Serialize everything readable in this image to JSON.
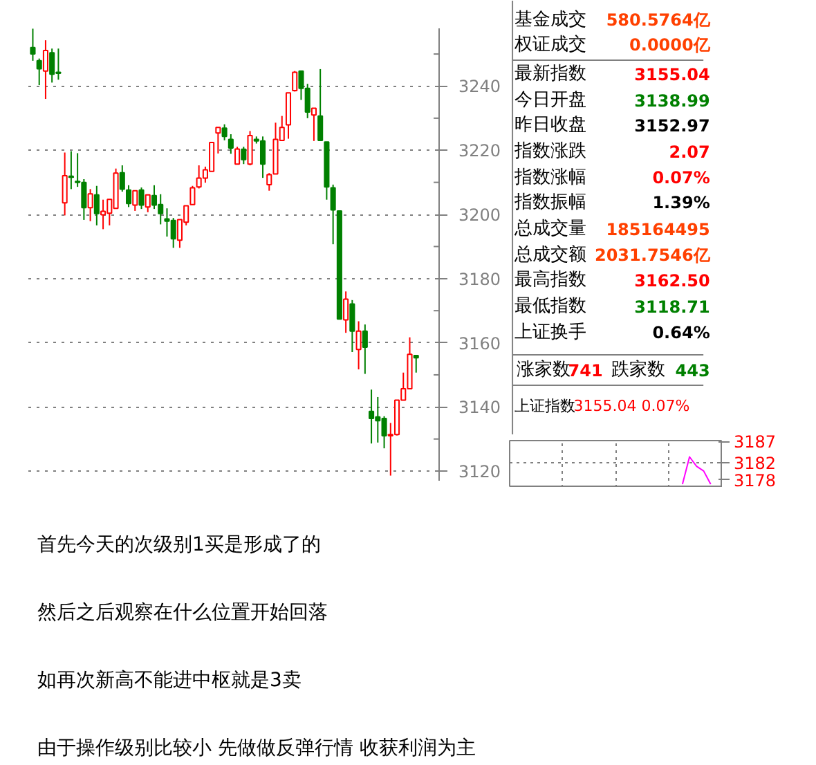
{
  "chart_data": [
    {
      "type": "candlestick",
      "categories": [
        null,
        null,
        null,
        null,
        null,
        null,
        null,
        null,
        null,
        null,
        null,
        null,
        null,
        null,
        null,
        null,
        null,
        null,
        null,
        null,
        null,
        null,
        null,
        null,
        null,
        null,
        null,
        null,
        null,
        null,
        null,
        null,
        null,
        null,
        null,
        null,
        null,
        null,
        null,
        null,
        null,
        null,
        null,
        null,
        null,
        null,
        null,
        null,
        null,
        null,
        null,
        null,
        null,
        null,
        null,
        null,
        null,
        null,
        null,
        null,
        null
      ],
      "ohlc": [
        [
          3252,
          3257.9,
          3247.9,
          3250
        ],
        [
          3247.9,
          3248.6,
          3240.3,
          3245.4
        ],
        [
          3244.7,
          3254.3,
          3236,
          3251.1
        ],
        [
          3250.4,
          3251.7,
          3241.1,
          3243.7
        ],
        [
          3244.3,
          3251.7,
          3242,
          3244
        ],
        [
          3203.6,
          3219.3,
          3199.7,
          3212.1
        ],
        [
          3211.9,
          3219.7,
          3207.9,
          3211.6
        ],
        [
          3210.3,
          3219.1,
          3208.6,
          3210
        ],
        [
          3210,
          3211,
          3198.3,
          3202.1
        ],
        [
          3202.1,
          3207.9,
          3197.9,
          3206.4
        ],
        [
          3206.1,
          3208.9,
          3196.6,
          3200.3
        ],
        [
          3199.9,
          3204.6,
          3195.4,
          3201
        ],
        [
          3200.4,
          3204.7,
          3196.6,
          3204.7
        ],
        [
          3201.9,
          3214.3,
          3201.9,
          3212.9
        ],
        [
          3213,
          3215.3,
          3207.1,
          3207.9
        ],
        [
          3207.6,
          3209.1,
          3202.3,
          3203.4
        ],
        [
          3202.9,
          3207.4,
          3201.1,
          3207.4
        ],
        [
          3207.6,
          3208.4,
          3201.7,
          3202.9
        ],
        [
          3202.3,
          3206.1,
          3200.7,
          3206.1
        ],
        [
          3205.9,
          3209.1,
          3201.7,
          3202.9
        ],
        [
          3203.1,
          3206.3,
          3196.9,
          3200.3
        ],
        [
          3198.6,
          3201.9,
          3193.1,
          3197.9
        ],
        [
          3198.1,
          3198.9,
          3189.6,
          3192.4
        ],
        [
          3192,
          3198.4,
          3189.6,
          3198.4
        ],
        [
          3197.6,
          3202.7,
          3196.6,
          3202.7
        ],
        [
          3203.1,
          3208.9,
          3203.1,
          3208.3
        ],
        [
          3208.6,
          3215.3,
          3208.1,
          3211.3
        ],
        [
          3211.3,
          3214.9,
          3209.9,
          3213.9
        ],
        [
          3213.4,
          3222.4,
          3213.4,
          3222.4
        ],
        [
          3225.4,
          3227.1,
          3219,
          3227.1
        ],
        [
          3226.9,
          3228.1,
          3223.1,
          3224.3
        ],
        [
          3223.4,
          3225,
          3218.9,
          3220.7
        ],
        [
          3215.7,
          3221.1,
          3215.7,
          3220.4
        ],
        [
          3220.3,
          3221.1,
          3215.7,
          3217.1
        ],
        [
          3215.7,
          3226,
          3215.3,
          3224.6
        ],
        [
          3223.4,
          3224.3,
          3222.1,
          3222.9
        ],
        [
          3222.9,
          3224.3,
          3211.4,
          3215.7
        ],
        [
          3209.3,
          3212.9,
          3207.4,
          3212.4
        ],
        [
          3212.6,
          3228.6,
          3212.6,
          3223.4
        ],
        [
          3223.1,
          3230.7,
          3222.9,
          3227.1
        ],
        [
          3227.9,
          3237.9,
          3223.6,
          3237.9
        ],
        [
          3238.6,
          3244.7,
          3238.3,
          3244.3
        ],
        [
          3244.7,
          3244.7,
          3235.7,
          3239.3
        ],
        [
          3239.3,
          3240.7,
          3230,
          3231.9
        ],
        [
          3231,
          3233.1,
          3222.9,
          3233.1
        ],
        [
          3230.7,
          3245.3,
          3223.1,
          3223.1
        ],
        [
          3222.6,
          3222.6,
          3204.6,
          3208.6
        ],
        [
          3208.3,
          3209.3,
          3190.7,
          3201.4
        ],
        [
          3201.1,
          3201.1,
          3167.4,
          3167.4
        ],
        [
          3167.1,
          3176,
          3163.1,
          3173.6
        ],
        [
          3172.1,
          3173.3,
          3157.1,
          3163.6
        ],
        [
          3157.9,
          3166.7,
          3151.7,
          3163.6
        ],
        [
          3163.6,
          3165.7,
          3150.3,
          3158.6
        ],
        [
          3138.6,
          3145.4,
          3128.6,
          3136.4
        ],
        [
          3136.9,
          3143.1,
          3128.9,
          3135.7
        ],
        [
          3136.4,
          3137.1,
          3127.1,
          3131
        ],
        [
          3131,
          3135,
          3118.6,
          3131.4
        ],
        [
          3131.4,
          3142.1,
          3131.1,
          3142.1
        ],
        [
          3142.1,
          3150.7,
          3142.1,
          3145.7
        ],
        [
          3145.7,
          3161.7,
          3145.7,
          3156.4
        ],
        [
          3156,
          3156,
          3150.7,
          3155.3
        ]
      ],
      "colors": [
        "#008000",
        "#008000",
        "#ff0000",
        "#008000",
        "#008000",
        "#ff0000",
        "#008000",
        "#008000",
        "#008000",
        "#ff0000",
        "#008000",
        "#ff0000",
        "#ff0000",
        "#ff0000",
        "#008000",
        "#008000",
        "#ff0000",
        "#008000",
        "#ff0000",
        "#008000",
        "#008000",
        "#008000",
        "#008000",
        "#ff0000",
        "#ff0000",
        "#ff0000",
        "#ff0000",
        "#ff0000",
        "#ff0000",
        "#ff0000",
        "#008000",
        "#008000",
        "#ff0000",
        "#008000",
        "#ff0000",
        "#008000",
        "#008000",
        "#ff0000",
        "#ff0000",
        "#ff0000",
        "#ff0000",
        "#ff0000",
        "#008000",
        "#008000",
        "#ff0000",
        "#008000",
        "#008000",
        "#008000",
        "#008000",
        "#ff0000",
        "#008000",
        "#ff0000",
        "#008000",
        "#008000",
        "#008000",
        "#008000",
        "#ff0000",
        "#ff0000",
        "#ff0000",
        "#ff0000",
        "#008000"
      ],
      "ylim": [
        3117,
        3258
      ],
      "yticks": [
        3120,
        {
          "value": 3130,
          "label": null
        },
        3140,
        {
          "value": 3150,
          "label": null
        },
        3160,
        {
          "value": 3170,
          "label": null
        },
        3180,
        {
          "value": 3190,
          "label": null
        },
        3200,
        {
          "value": 3210,
          "label": null
        },
        3220,
        {
          "value": 3230,
          "label": null
        },
        3240,
        {
          "value": 3250,
          "label": null
        }
      ],
      "grid": "y",
      "tick_labels": "y",
      "annotations": [
        "首先今天的次级别1买是形成了的",
        "然后之后观察在什么位置开始回落",
        "如再次新高不能进中枢就是3卖",
        "由于操作级别比较小 先做做反弹行情 收获利润为主"
      ]
    },
    {
      "type": "other",
      "categories": [
        "基金成交",
        "权证成交",
        "最新指数",
        "今日开盘",
        "昨日收盘",
        "指数涨跌",
        "指数涨幅",
        "指数振幅",
        "总成交量",
        "总成交额",
        "最高指数",
        "最低指数",
        "上证换手",
        "涨家数",
        "跌家数"
      ],
      "value_labels": [
        "580.5764亿",
        "0.0000亿",
        "3155.04",
        "3138.99",
        "3152.97",
        "2.07",
        "0.07%",
        "1.39%",
        "185164495",
        "2031.7546亿",
        "3162.50",
        "3118.71",
        "0.64%",
        "741",
        "443"
      ],
      "colors": [
        "#ff4000",
        "#ff4000",
        "#ff0000",
        "#008000",
        "#000000",
        "#ff0000",
        "#ff0000",
        "#000000",
        "#ff4000",
        "#ff4000",
        "#ff0000",
        "#008000",
        "#000000",
        "#ff0000",
        "#008000"
      ]
    },
    {
      "type": "line",
      "title": "上证指数",
      "subtitle": "3155.04 0.07%",
      "categories": [
        null,
        null,
        null,
        null,
        null,
        null,
        null,
        null,
        null,
        null,
        null,
        null,
        null,
        null,
        null,
        null,
        null,
        null,
        null,
        null,
        null,
        null,
        null,
        null,
        null,
        null,
        null,
        null,
        null,
        null,
        null,
        null,
        null,
        null,
        null,
        null,
        null,
        null,
        null,
        null,
        null,
        null,
        null,
        null,
        null,
        null,
        null,
        null,
        null,
        null,
        null,
        null,
        null,
        null,
        null,
        null,
        null,
        null,
        null,
        null,
        null
      ],
      "series": [
        {
          "color": "#ff00ff",
          "values": [
            null,
            null,
            null,
            null,
            null,
            null,
            null,
            null,
            null,
            null,
            null,
            null,
            null,
            null,
            null,
            null,
            null,
            null,
            null,
            null,
            null,
            null,
            null,
            null,
            null,
            null,
            null,
            null,
            null,
            null,
            null,
            null,
            null,
            null,
            null,
            null,
            null,
            null,
            null,
            null,
            null,
            null,
            null,
            null,
            null,
            null,
            null,
            null,
            null,
            3177,
            null,
            3183.4,
            null,
            3181.2,
            null,
            3180.1,
            null,
            3177,
            null,
            null,
            null
          ]
        }
      ],
      "ylim": [
        3176.2,
        3187.2
      ],
      "yticks": [
        3187,
        3182,
        3178
      ],
      "grid": true,
      "tick_labels": "y"
    }
  ]
}
